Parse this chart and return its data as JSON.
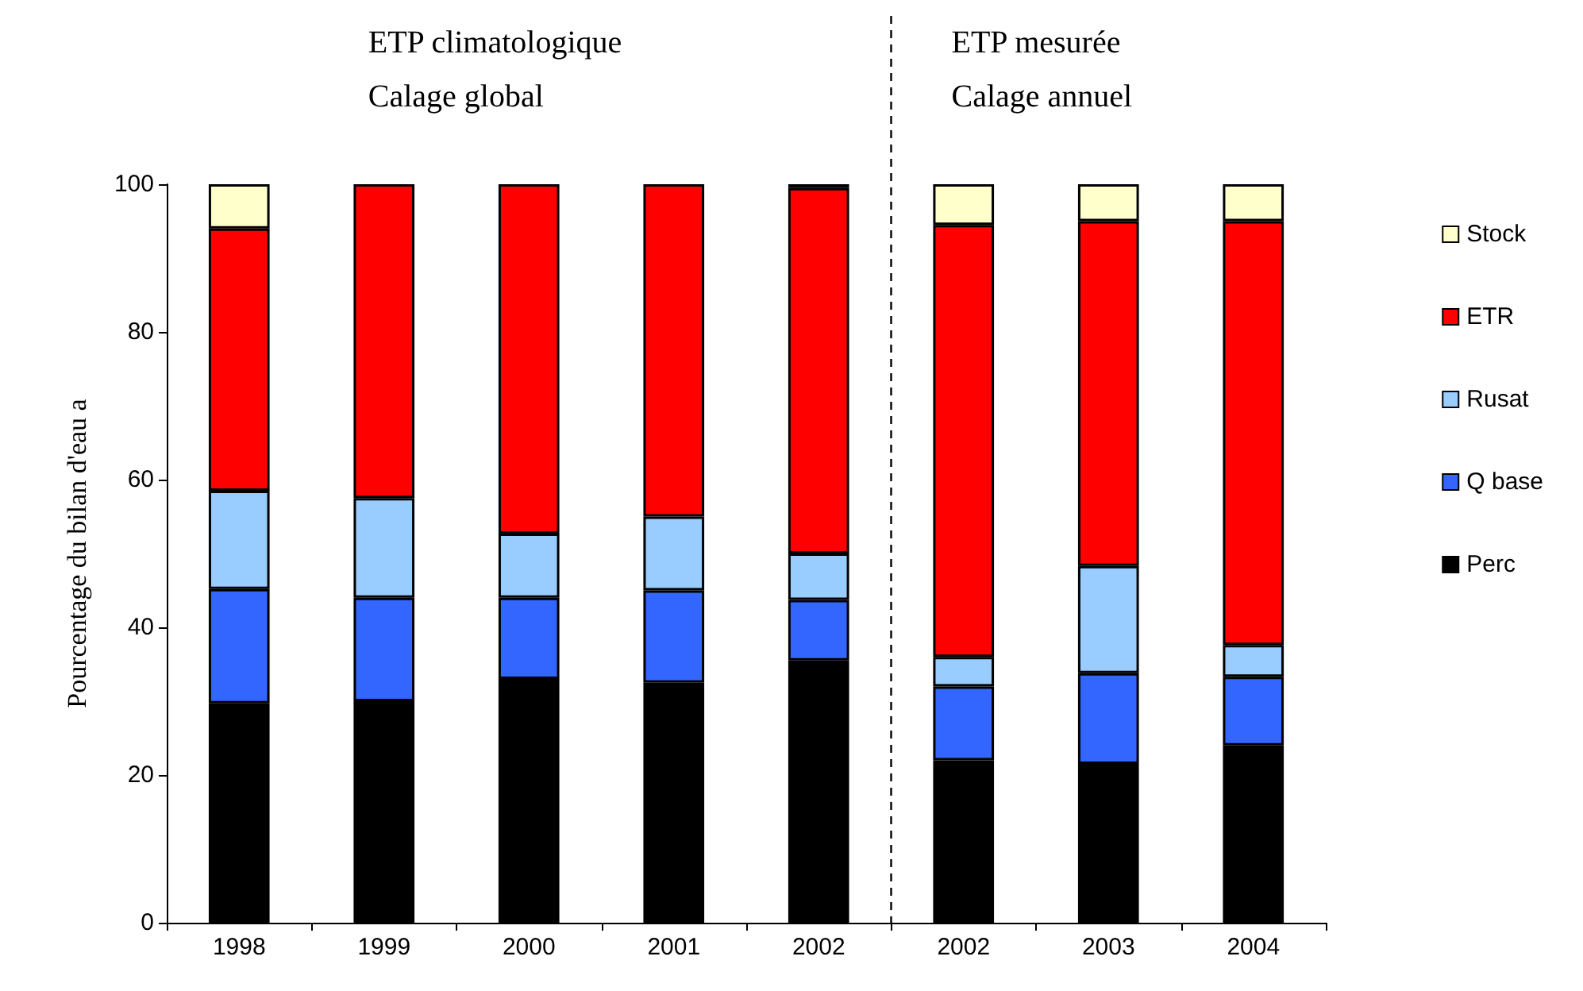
{
  "chart_data": {
    "type": "bar",
    "stacked": true,
    "ylabel": "Pourcentage du bilan d'eau a",
    "annotations": [
      "ETP climatologique\nCalage global",
      "ETP mesurée\nCalage annuel"
    ],
    "categories": [
      "1998",
      "1999",
      "2000",
      "2001",
      "2002",
      "2002",
      "2003",
      "2004"
    ],
    "series": [
      {
        "name": "Perc",
        "color": "#000000",
        "values": [
          29.7,
          30,
          33,
          32.5,
          35.5,
          22,
          21.5,
          24
        ]
      },
      {
        "name": "Q base",
        "color": "#3366ff",
        "values": [
          15.5,
          14,
          11,
          12.5,
          8.2,
          10,
          12.3,
          9.3
        ]
      },
      {
        "name": "Rusat",
        "color": "#99ccff",
        "values": [
          13.3,
          13.5,
          8.7,
          10,
          6.3,
          4,
          14.5,
          4.3
        ]
      },
      {
        "name": "ETR",
        "color": "#ff0000",
        "values": [
          35.5,
          42.5,
          47.3,
          45,
          49.5,
          58.5,
          46.7,
          57.4
        ]
      },
      {
        "name": "Stock",
        "color": "#ffffcc",
        "values": [
          6,
          null,
          null,
          null,
          0.5,
          5.5,
          5,
          5
        ]
      }
    ],
    "ylim": [
      0,
      100
    ],
    "yticks": [
      0,
      20,
      40,
      60,
      80,
      100
    ],
    "grid": false,
    "legend": "right"
  }
}
